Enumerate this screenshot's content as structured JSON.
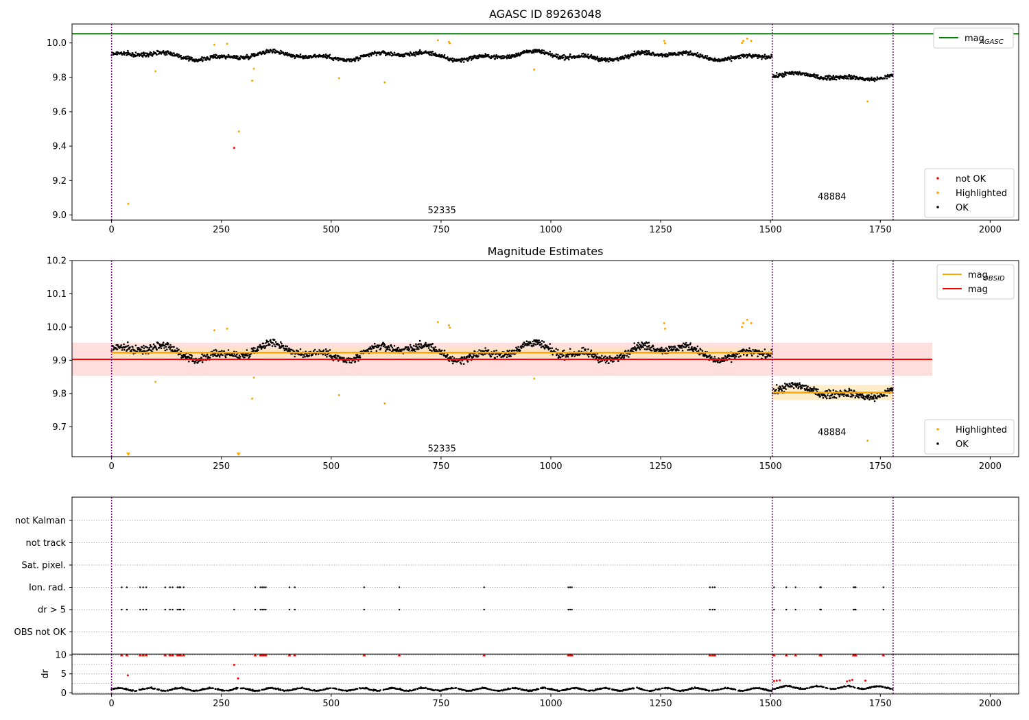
{
  "chart_data": [
    {
      "type": "scatter",
      "title": "AGASC ID 89263048",
      "xlim": [
        -90,
        2065
      ],
      "ylim": [
        8.97,
        10.11
      ],
      "xticks": [
        0,
        250,
        500,
        750,
        1000,
        1250,
        1500,
        1750,
        2000
      ],
      "yticks": [
        9.0,
        9.2,
        9.4,
        9.6,
        9.8,
        10.0
      ],
      "ytick_labels": [
        "9.0",
        "9.2",
        "9.4",
        "9.6",
        "9.8",
        "10.0"
      ],
      "hlines": [
        {
          "name": "mag_AGASC",
          "label_main": "mag",
          "label_sub": "AGASC",
          "y": 10.053,
          "color": "#008000"
        }
      ],
      "obs_boundaries": [
        0,
        1504,
        1779
      ],
      "obs_boundary_color": "#800080",
      "obs_labels": [
        {
          "text": "52335",
          "x": 752,
          "y": 9.01
        },
        {
          "text": "48884",
          "x": 1640,
          "y": 9.09
        }
      ],
      "segments": [
        {
          "x0": 0,
          "x1": 1503,
          "base": 9.925,
          "amp": 0.028,
          "noise": 0.012
        },
        {
          "x0": 1505,
          "x1": 1778,
          "base": 9.805,
          "amp": 0.02,
          "noise": 0.012
        }
      ],
      "series": [
        {
          "name": "not OK",
          "color": "#ff0000",
          "points": [
            [
              279,
              9.39
            ]
          ]
        },
        {
          "name": "Highlighted",
          "color": "#ffa500",
          "points": [
            [
              38,
              9.065
            ],
            [
              100,
              9.835
            ],
            [
              234,
              9.99
            ],
            [
              263,
              9.995
            ],
            [
              290,
              9.485
            ],
            [
              320,
              9.78
            ],
            [
              324,
              9.85
            ],
            [
              518,
              9.795
            ],
            [
              622,
              9.77
            ],
            [
              743,
              10.015
            ],
            [
              768,
              10.005
            ],
            [
              770,
              9.998
            ],
            [
              962,
              9.845
            ],
            [
              1258,
              10.012
            ],
            [
              1260,
              9.998
            ],
            [
              1435,
              10.0
            ],
            [
              1438,
              10.012
            ],
            [
              1447,
              10.025
            ],
            [
              1456,
              10.012
            ],
            [
              1721,
              9.66
            ]
          ]
        },
        {
          "name": "OK",
          "color": "#000000",
          "points": []
        }
      ],
      "legends": [
        {
          "position": "top-right",
          "items": [
            {
              "label_main": "mag",
              "label_sub": "AGASC",
              "kind": "line",
              "color": "#008000"
            }
          ]
        },
        {
          "position": "bottom-right",
          "items": [
            {
              "label": "not OK",
              "kind": "dot",
              "color": "#ff0000"
            },
            {
              "label": "Highlighted",
              "kind": "dot",
              "color": "#ffa500"
            },
            {
              "label": "OK",
              "kind": "dot",
              "color": "#000000"
            }
          ]
        }
      ]
    },
    {
      "type": "scatter",
      "title": "Magnitude Estimates",
      "xlim": [
        -90,
        2065
      ],
      "ylim": [
        9.61,
        10.2
      ],
      "xticks": [
        0,
        250,
        500,
        750,
        1000,
        1250,
        1500,
        1750,
        2000
      ],
      "yticks": [
        9.7,
        9.8,
        9.9,
        10.0,
        10.1,
        10.2
      ],
      "ytick_labels": [
        "9.7",
        "9.8",
        "9.9",
        "10.0",
        "10.1",
        "10.2"
      ],
      "mag": {
        "name": "mag",
        "y": 9.903,
        "band": [
          9.853,
          9.953
        ],
        "x0": -90,
        "x1": 1868,
        "color": "#ff0000",
        "band_color": "#ffc8c8"
      },
      "obs_mags": [
        {
          "name": "mag_OBSID",
          "x0": 0,
          "x1": 1504,
          "y": 9.923,
          "band": [
            9.908,
            9.938
          ],
          "color": "#ffa500",
          "band_color": "#ffe4b0"
        },
        {
          "name": "mag_OBSID",
          "x0": 1504,
          "x1": 1779,
          "y": 9.803,
          "band": [
            9.78,
            9.826
          ],
          "color": "#ffa500",
          "band_color": "#ffe4b0"
        }
      ],
      "obs_boundaries": [
        0,
        1504,
        1779
      ],
      "obs_labels": [
        {
          "text": "52335",
          "x": 752,
          "y": 9.625
        },
        {
          "text": "48884",
          "x": 1640,
          "y": 9.675
        }
      ],
      "segments": [
        {
          "x0": 0,
          "x1": 1503,
          "base": 9.925,
          "amp": 0.028,
          "noise": 0.012
        },
        {
          "x0": 1505,
          "x1": 1778,
          "base": 9.805,
          "amp": 0.02,
          "noise": 0.012
        }
      ],
      "series": [
        {
          "name": "Highlighted",
          "color": "#ffa500",
          "points": [
            [
              100,
              9.835
            ],
            [
              234,
              9.99
            ],
            [
              263,
              9.995
            ],
            [
              320,
              9.785
            ],
            [
              324,
              9.848
            ],
            [
              518,
              9.795
            ],
            [
              622,
              9.77
            ],
            [
              743,
              10.015
            ],
            [
              768,
              10.005
            ],
            [
              770,
              9.998
            ],
            [
              962,
              9.845
            ],
            [
              1258,
              10.012
            ],
            [
              1260,
              9.995
            ],
            [
              1435,
              10.0
            ],
            [
              1438,
              10.012
            ],
            [
              1447,
              10.022
            ],
            [
              1456,
              10.012
            ],
            [
              1721,
              9.658
            ]
          ]
        },
        {
          "name": "OK",
          "color": "#000000",
          "points": []
        }
      ],
      "offscale_markers": [
        {
          "x": 38,
          "color": "#ffa500"
        },
        {
          "x": 289,
          "color": "#ffa500"
        }
      ],
      "legends": [
        {
          "position": "top-right",
          "items": [
            {
              "label_main": "mag",
              "label_sub": "OBSID",
              "kind": "line",
              "color": "#ffa500"
            },
            {
              "label": "mag",
              "kind": "line",
              "color": "#ff0000"
            }
          ]
        },
        {
          "position": "bottom-right",
          "items": [
            {
              "label": "Highlighted",
              "kind": "dot",
              "color": "#ffa500"
            },
            {
              "label": "OK",
              "kind": "dot",
              "color": "#000000"
            }
          ]
        }
      ]
    },
    {
      "type": "scatter",
      "title": "",
      "xlim": [
        -90,
        2065
      ],
      "xticks": [
        0,
        250,
        500,
        750,
        1000,
        1250,
        1500,
        1750,
        2000
      ],
      "flag_rows": [
        "not Kalman",
        "not track",
        "Sat. pixel.",
        "Ion. rad.",
        "dr > 5",
        "OBS not OK"
      ],
      "flags": {
        "Ion. rad.": [
          23,
          35,
          65,
          72,
          79,
          122,
          133,
          139,
          150,
          154,
          157,
          164,
          327,
          339,
          343,
          347,
          351,
          405,
          417,
          575,
          655,
          848,
          1040,
          1044,
          1048,
          1362,
          1368,
          1373,
          1508,
          1536,
          1557,
          1613,
          1615,
          1689,
          1692,
          1694,
          1757
        ],
        "dr > 5": [
          23,
          35,
          65,
          72,
          79,
          122,
          133,
          139,
          150,
          154,
          157,
          164,
          279,
          327,
          339,
          343,
          347,
          351,
          405,
          417,
          575,
          655,
          848,
          1040,
          1044,
          1048,
          1362,
          1368,
          1373,
          1508,
          1536,
          1557,
          1613,
          1615,
          1689,
          1692,
          1694,
          1757
        ]
      },
      "obs_boundaries": [
        0,
        1504,
        1779
      ],
      "dr": {
        "ylabel": "dr",
        "ylim": [
          -0.3,
          10.2
        ],
        "yticks": [
          0,
          5,
          10
        ],
        "ytick_labels": [
          "0",
          "5",
          "10"
        ],
        "clipped_value": 10,
        "clipped_x": [
          23,
          35,
          65,
          72,
          79,
          122,
          133,
          139,
          150,
          154,
          157,
          164,
          327,
          339,
          343,
          347,
          351,
          405,
          417,
          575,
          655,
          848,
          1040,
          1044,
          1048,
          1362,
          1368,
          1373,
          1508,
          1536,
          1557,
          1613,
          1615,
          1689,
          1692,
          1694,
          1757
        ],
        "red_points": [
          [
            37,
            4.6
          ],
          [
            279,
            7.4
          ],
          [
            288,
            3.8
          ],
          [
            1508,
            3.1
          ],
          [
            1514,
            3.2
          ],
          [
            1521,
            3.3
          ],
          [
            1674,
            3.0
          ],
          [
            1680,
            3.2
          ],
          [
            1686,
            3.4
          ],
          [
            1716,
            3.2
          ]
        ],
        "segments": [
          {
            "x0": 0,
            "x1": 1503,
            "base": 0.8
          },
          {
            "x0": 1505,
            "x1": 1778,
            "base": 1.3
          }
        ]
      }
    }
  ]
}
